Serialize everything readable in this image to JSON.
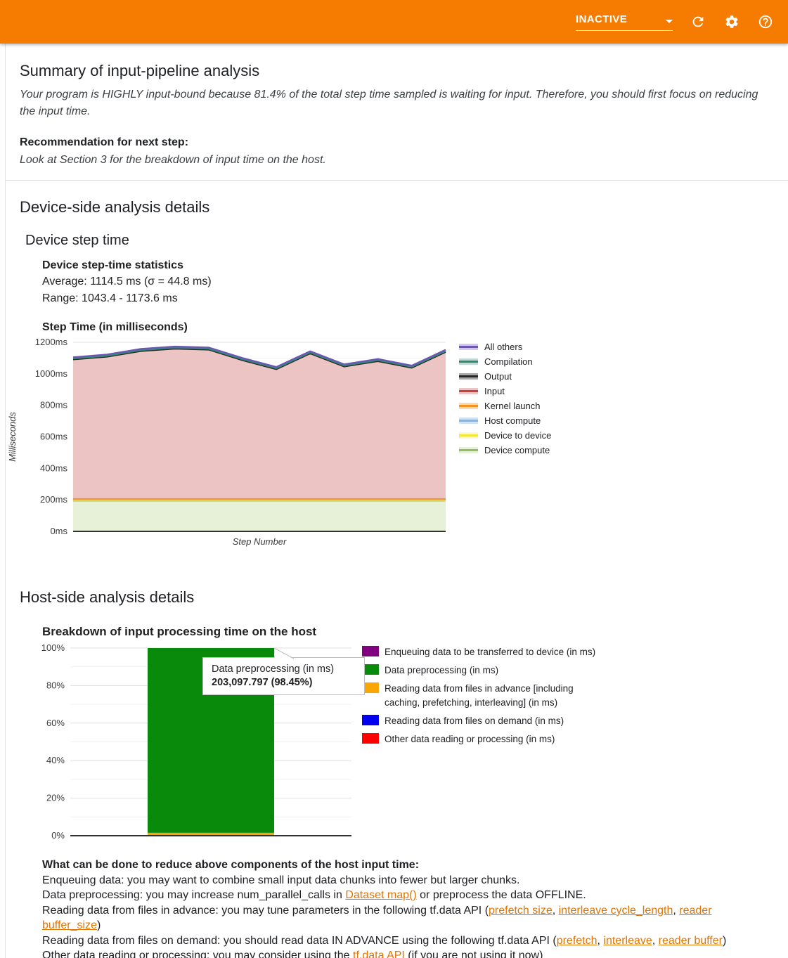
{
  "header": {
    "run_status": "INACTIVE",
    "icons": [
      "refresh-icon",
      "settings-icon",
      "help-icon"
    ]
  },
  "summary": {
    "title": "Summary of input-pipeline analysis",
    "body": "Your program is HIGHLY input-bound because 81.4% of the total step time sampled is waiting for input. Therefore, you should first focus on reducing the input time.",
    "recommendation_label": "Recommendation for next step:",
    "recommendation_body": "Look at Section 3 for the breakdown of input time on the host."
  },
  "device_section": {
    "title": "Device-side analysis details",
    "subtitle": "Device step time",
    "stats_title": "Device step-time statistics",
    "average_line": "Average: 1114.5 ms (σ = 44.8 ms)",
    "range_line": "Range: 1043.4 - 1173.6 ms",
    "chart_title": "Step Time (in milliseconds)"
  },
  "host_section": {
    "title": "Host-side analysis details",
    "chart_title": "Breakdown of input processing time on the host",
    "tips_title": "What can be done to reduce above components of the host input time:",
    "tips": [
      [
        {
          "text": "Enqueuing data: you may want to combine small input data chunks into fewer but larger chunks."
        }
      ],
      [
        {
          "text": "Data preprocessing: you may increase num_parallel_calls in "
        },
        {
          "text": "Dataset map()",
          "link": true
        },
        {
          "text": " or preprocess the data OFFLINE."
        }
      ],
      [
        {
          "text": "Reading data from files in advance: you may tune parameters in the following tf.data API ("
        },
        {
          "text": "prefetch size",
          "link": true
        },
        {
          "text": ", "
        },
        {
          "text": "interleave cycle_length",
          "link": true
        },
        {
          "text": ", "
        },
        {
          "text": "reader buffer_size",
          "link": true
        },
        {
          "text": ")"
        }
      ],
      [
        {
          "text": "Reading data from files on demand: you should read data IN ADVANCE using the following tf.data API ("
        },
        {
          "text": "prefetch",
          "link": true
        },
        {
          "text": ", "
        },
        {
          "text": "interleave",
          "link": true
        },
        {
          "text": ", "
        },
        {
          "text": "reader buffer",
          "link": true
        },
        {
          "text": ")"
        }
      ],
      [
        {
          "text": "Other data reading or processing: you may consider using the "
        },
        {
          "text": "tf.data API",
          "link": true
        },
        {
          "text": " (if you are not using it now)"
        }
      ]
    ]
  },
  "chart_data": [
    {
      "type": "area",
      "title": "Step Time (in milliseconds)",
      "xlabel": "Step Number",
      "ylabel": "Milliseconds",
      "ylim": [
        0,
        1200
      ],
      "ytick_labels": [
        "0ms",
        "200ms",
        "400ms",
        "600ms",
        "800ms",
        "1000ms",
        "1200ms"
      ],
      "grid": true,
      "legend_position": "right",
      "step_total_ms": [
        1105,
        1122,
        1158,
        1173,
        1167,
        1100,
        1043,
        1143,
        1060,
        1094,
        1052,
        1152
      ],
      "stack_bottom_to_top": [
        {
          "name": "Device compute",
          "ms": 193,
          "line": "#94bf60",
          "fill": "#e6f1d7"
        },
        {
          "name": "Device to device",
          "ms": 3,
          "line": "#f2e63d",
          "fill": "#fcf8c0"
        },
        {
          "name": "Host compute",
          "ms": 3,
          "line": "#82b4e8",
          "fill": "#cfe3f7"
        },
        {
          "name": "Kernel launch",
          "ms": 7,
          "line": "#f59322",
          "fill": "#fbd9ad"
        },
        {
          "name": "Input",
          "ms": "remainder",
          "line": "#cd3d3d",
          "fill": "#edc4c4"
        },
        {
          "name": "Output",
          "ms": 3,
          "line": "#262626",
          "fill": "#a9a9a9"
        },
        {
          "name": "Compilation",
          "ms": 4,
          "line": "#2f8a73",
          "fill": "#bfdad2"
        },
        {
          "name": "All others",
          "ms": 3,
          "line": "#6d57b5",
          "fill": "#d2c9ea"
        }
      ],
      "legend": [
        {
          "label": "All others",
          "line": "#6d57b5",
          "fill": "#d2c9ea"
        },
        {
          "label": "Compilation",
          "line": "#2f8a73",
          "fill": "#bfdad2"
        },
        {
          "label": "Output",
          "line": "#262626",
          "fill": "#a9a9a9"
        },
        {
          "label": "Input",
          "line": "#cd3d3d",
          "fill": "#edc4c4"
        },
        {
          "label": "Kernel launch",
          "line": "#f59322",
          "fill": "#fbd9ad"
        },
        {
          "label": "Host compute",
          "line": "#82b4e8",
          "fill": "#cfe3f7"
        },
        {
          "label": "Device to device",
          "line": "#f2e63d",
          "fill": "#fcf8c0"
        },
        {
          "label": "Device compute",
          "line": "#94bf60",
          "fill": "#e6f1d7"
        }
      ]
    },
    {
      "type": "bar",
      "title": "Breakdown of input processing time on the host",
      "ylim": [
        0,
        100
      ],
      "ytick_labels": [
        "0%",
        "20%",
        "40%",
        "60%",
        "80%",
        "100%"
      ],
      "grid": true,
      "legend_position": "right",
      "bar_segments_bottom_to_top": [
        {
          "label": "Reading data from files in advance [including caching, prefetching, interleaving] (in ms)",
          "value_pct": 1.55,
          "color": "#f9a602"
        },
        {
          "label": "Data preprocessing (in ms)",
          "value_pct": 98.45,
          "color": "#0a8a0a"
        }
      ],
      "tooltip": {
        "title": "Data preprocessing (in ms)",
        "value": "203,097.797 (98.45%)"
      },
      "legend": [
        {
          "label": "Enqueuing data to be transferred to device (in ms)",
          "color": "#800080"
        },
        {
          "label": "Data preprocessing (in ms)",
          "color": "#0a8a0a"
        },
        {
          "label": "Reading data from files in advance [including caching, prefetching, interleaving] (in ms)",
          "color": "#f9a602"
        },
        {
          "label": "Reading data from files on demand (in ms)",
          "color": "#0000ee"
        },
        {
          "label": "Other data reading or processing (in ms)",
          "color": "#ff0000"
        }
      ]
    }
  ]
}
